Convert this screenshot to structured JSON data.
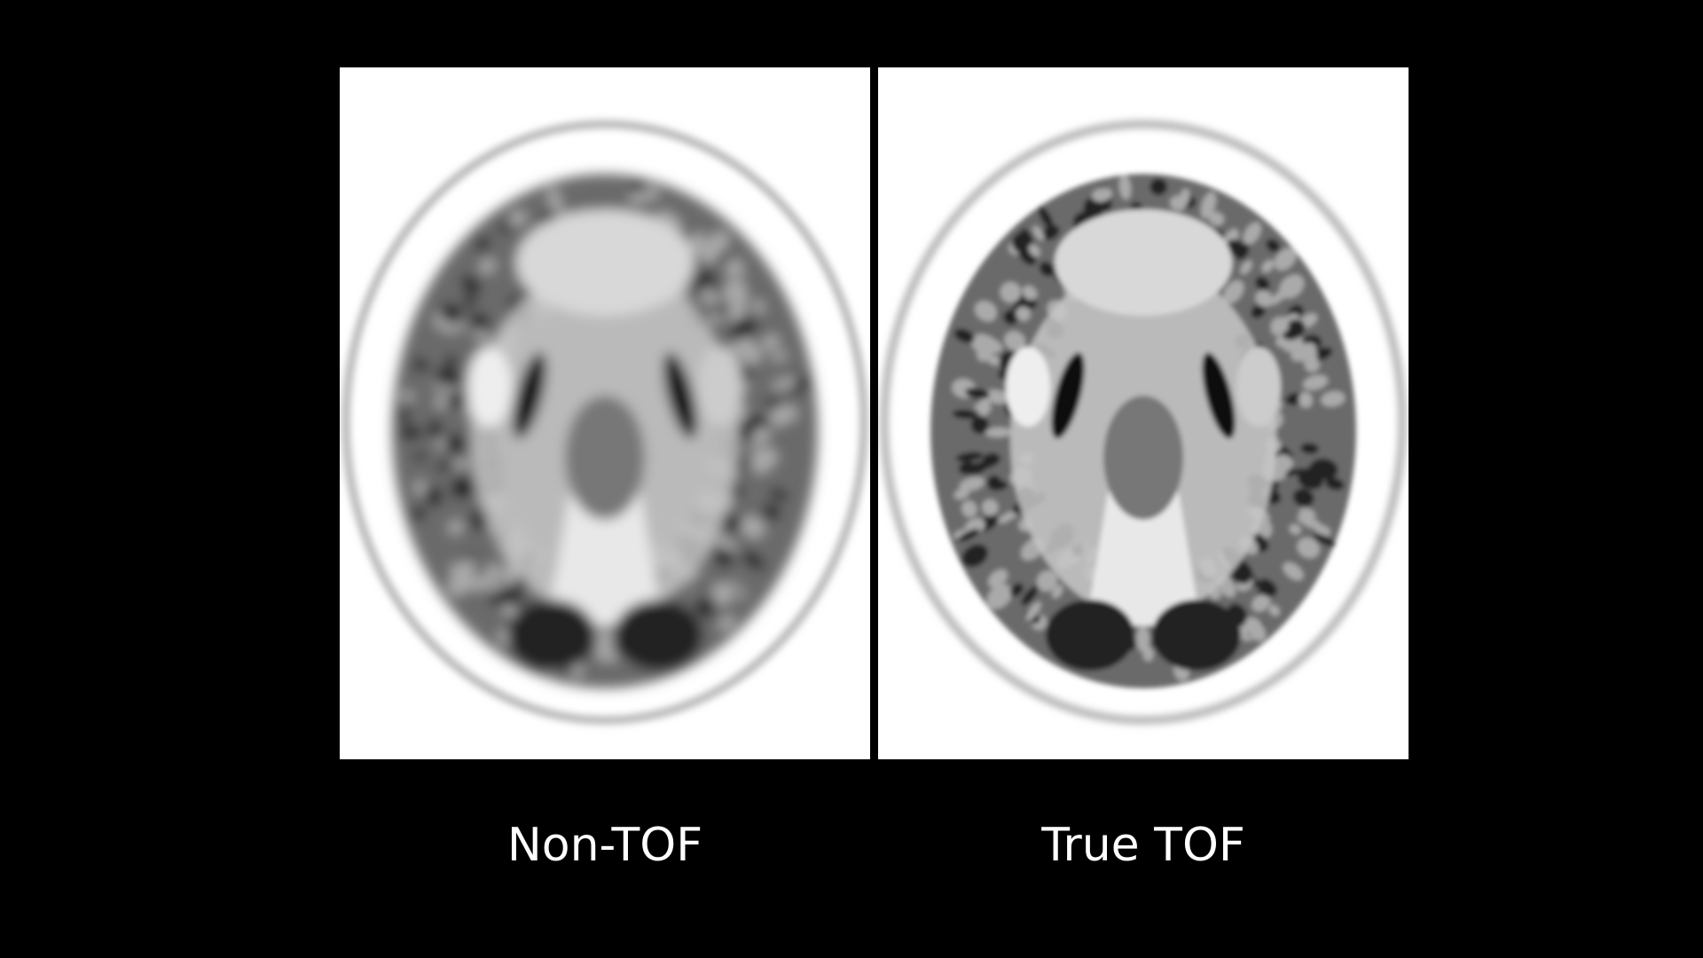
{
  "slide": {
    "images": [
      {
        "label": "Non-TOF",
        "blur": "high"
      },
      {
        "label": "True TOF",
        "blur": "low"
      }
    ],
    "colors": {
      "background": "#000000",
      "image_background": "#ffffff",
      "text": "#ffffff"
    }
  }
}
